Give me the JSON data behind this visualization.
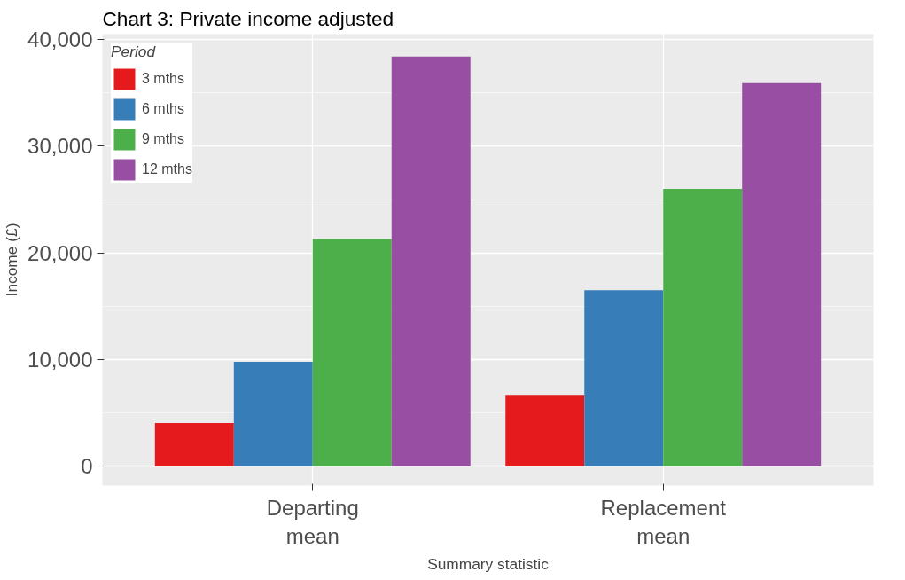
{
  "chart_data": {
    "type": "bar",
    "title": "Chart 3: Private income adjusted",
    "xlabel": "Summary statistic",
    "ylabel": "Income (£)",
    "legend_title": "Period",
    "categories": [
      "Departing mean",
      "Replacement mean"
    ],
    "series": [
      {
        "name": "3 mths",
        "color": "#e41a1c",
        "values": [
          4050,
          6700
        ]
      },
      {
        "name": "6 mths",
        "color": "#377eb8",
        "values": [
          9800,
          16500
        ]
      },
      {
        "name": "9 mths",
        "color": "#4daf4a",
        "values": [
          21300,
          26000
        ]
      },
      {
        "name": "12 mths",
        "color": "#984ea3",
        "values": [
          38400,
          35900
        ]
      }
    ],
    "ylim": [
      -1800,
      40500
    ],
    "yticks": [
      {
        "value": 0,
        "label": "0"
      },
      {
        "value": 10000,
        "label": "10,000"
      },
      {
        "value": 20000,
        "label": "20,000"
      },
      {
        "value": 30000,
        "label": "30,000"
      },
      {
        "value": 40000,
        "label": "40,000"
      }
    ],
    "grid": true,
    "legend": "top left"
  }
}
